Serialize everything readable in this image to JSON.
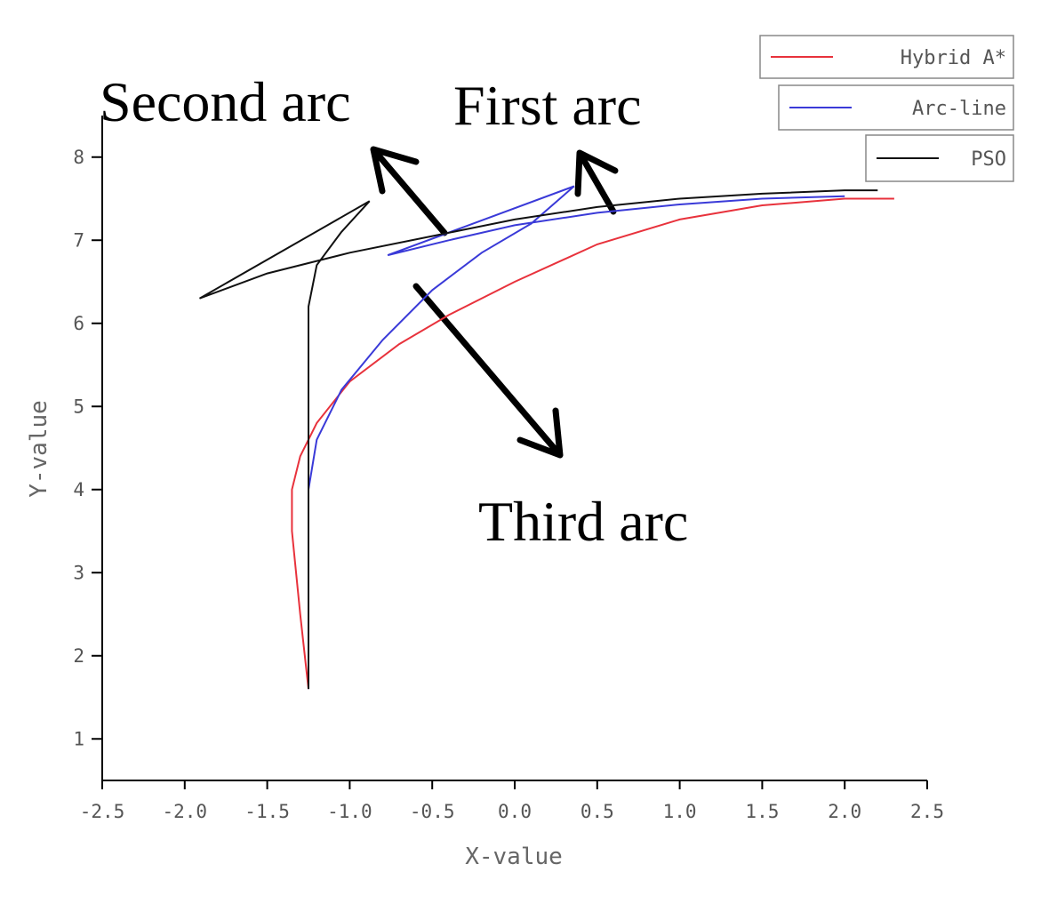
{
  "chart_data": {
    "type": "line",
    "x_label": "X-value",
    "y_label": "Y-value",
    "xlim": [
      -2.5,
      2.5
    ],
    "ylim": [
      0.5,
      8.5
    ],
    "xticks": [
      -2.5,
      {
        "value": -2,
        "label": "-2.0"
      },
      -1.5,
      {
        "value": -1,
        "label": "-1.0"
      },
      -0.5,
      {
        "value": 0,
        "label": "0.0"
      },
      0.5,
      {
        "value": 1,
        "label": "1.0"
      },
      1.5,
      {
        "value": 2,
        "label": "2.0"
      },
      2.5
    ],
    "yticks": [
      1,
      2,
      3,
      4,
      5,
      6,
      7,
      8
    ],
    "legend": "upper right",
    "grid": false,
    "series": [
      {
        "name": "Hybrid A*",
        "color": "#e8323c",
        "x": [
          -1.25,
          -1.3,
          -1.35,
          -1.35,
          -1.3,
          -1.2,
          -1.0,
          -0.7,
          -0.4,
          0,
          0.5,
          1.0,
          1.5,
          2.0,
          2.3
        ],
        "values": [
          1.6,
          2.5,
          3.5,
          4.0,
          4.4,
          4.8,
          5.3,
          5.75,
          6.1,
          6.5,
          6.95,
          7.25,
          7.42,
          7.5,
          7.5
        ]
      },
      {
        "name": "Arc-line",
        "color": "#3a3ad8",
        "x": [
          -1.25,
          -1.25,
          -1.2,
          -1.05,
          -0.8,
          -0.5,
          -0.2,
          0.1,
          0.36,
          -0.77,
          -0.4,
          0,
          0.5,
          1.0,
          1.5,
          2.0
        ],
        "values": [
          1.6,
          4.0,
          4.6,
          5.2,
          5.8,
          6.4,
          6.85,
          7.2,
          7.65,
          6.82,
          7.0,
          7.18,
          7.33,
          7.43,
          7.5,
          7.53
        ]
      },
      {
        "name": "PSO",
        "color": "#111111",
        "x": [
          -1.25,
          -1.25,
          -1.2,
          -1.05,
          -0.88,
          -1.91,
          -1.5,
          -1.0,
          -0.5,
          0,
          0.5,
          1.0,
          1.5,
          2.0,
          2.2
        ],
        "values": [
          1.6,
          6.2,
          6.7,
          7.1,
          7.47,
          6.3,
          6.6,
          6.85,
          7.05,
          7.25,
          7.4,
          7.5,
          7.56,
          7.6,
          7.6
        ]
      }
    ],
    "annotations": [
      "Second arc",
      "First arc",
      "Third arc"
    ]
  }
}
